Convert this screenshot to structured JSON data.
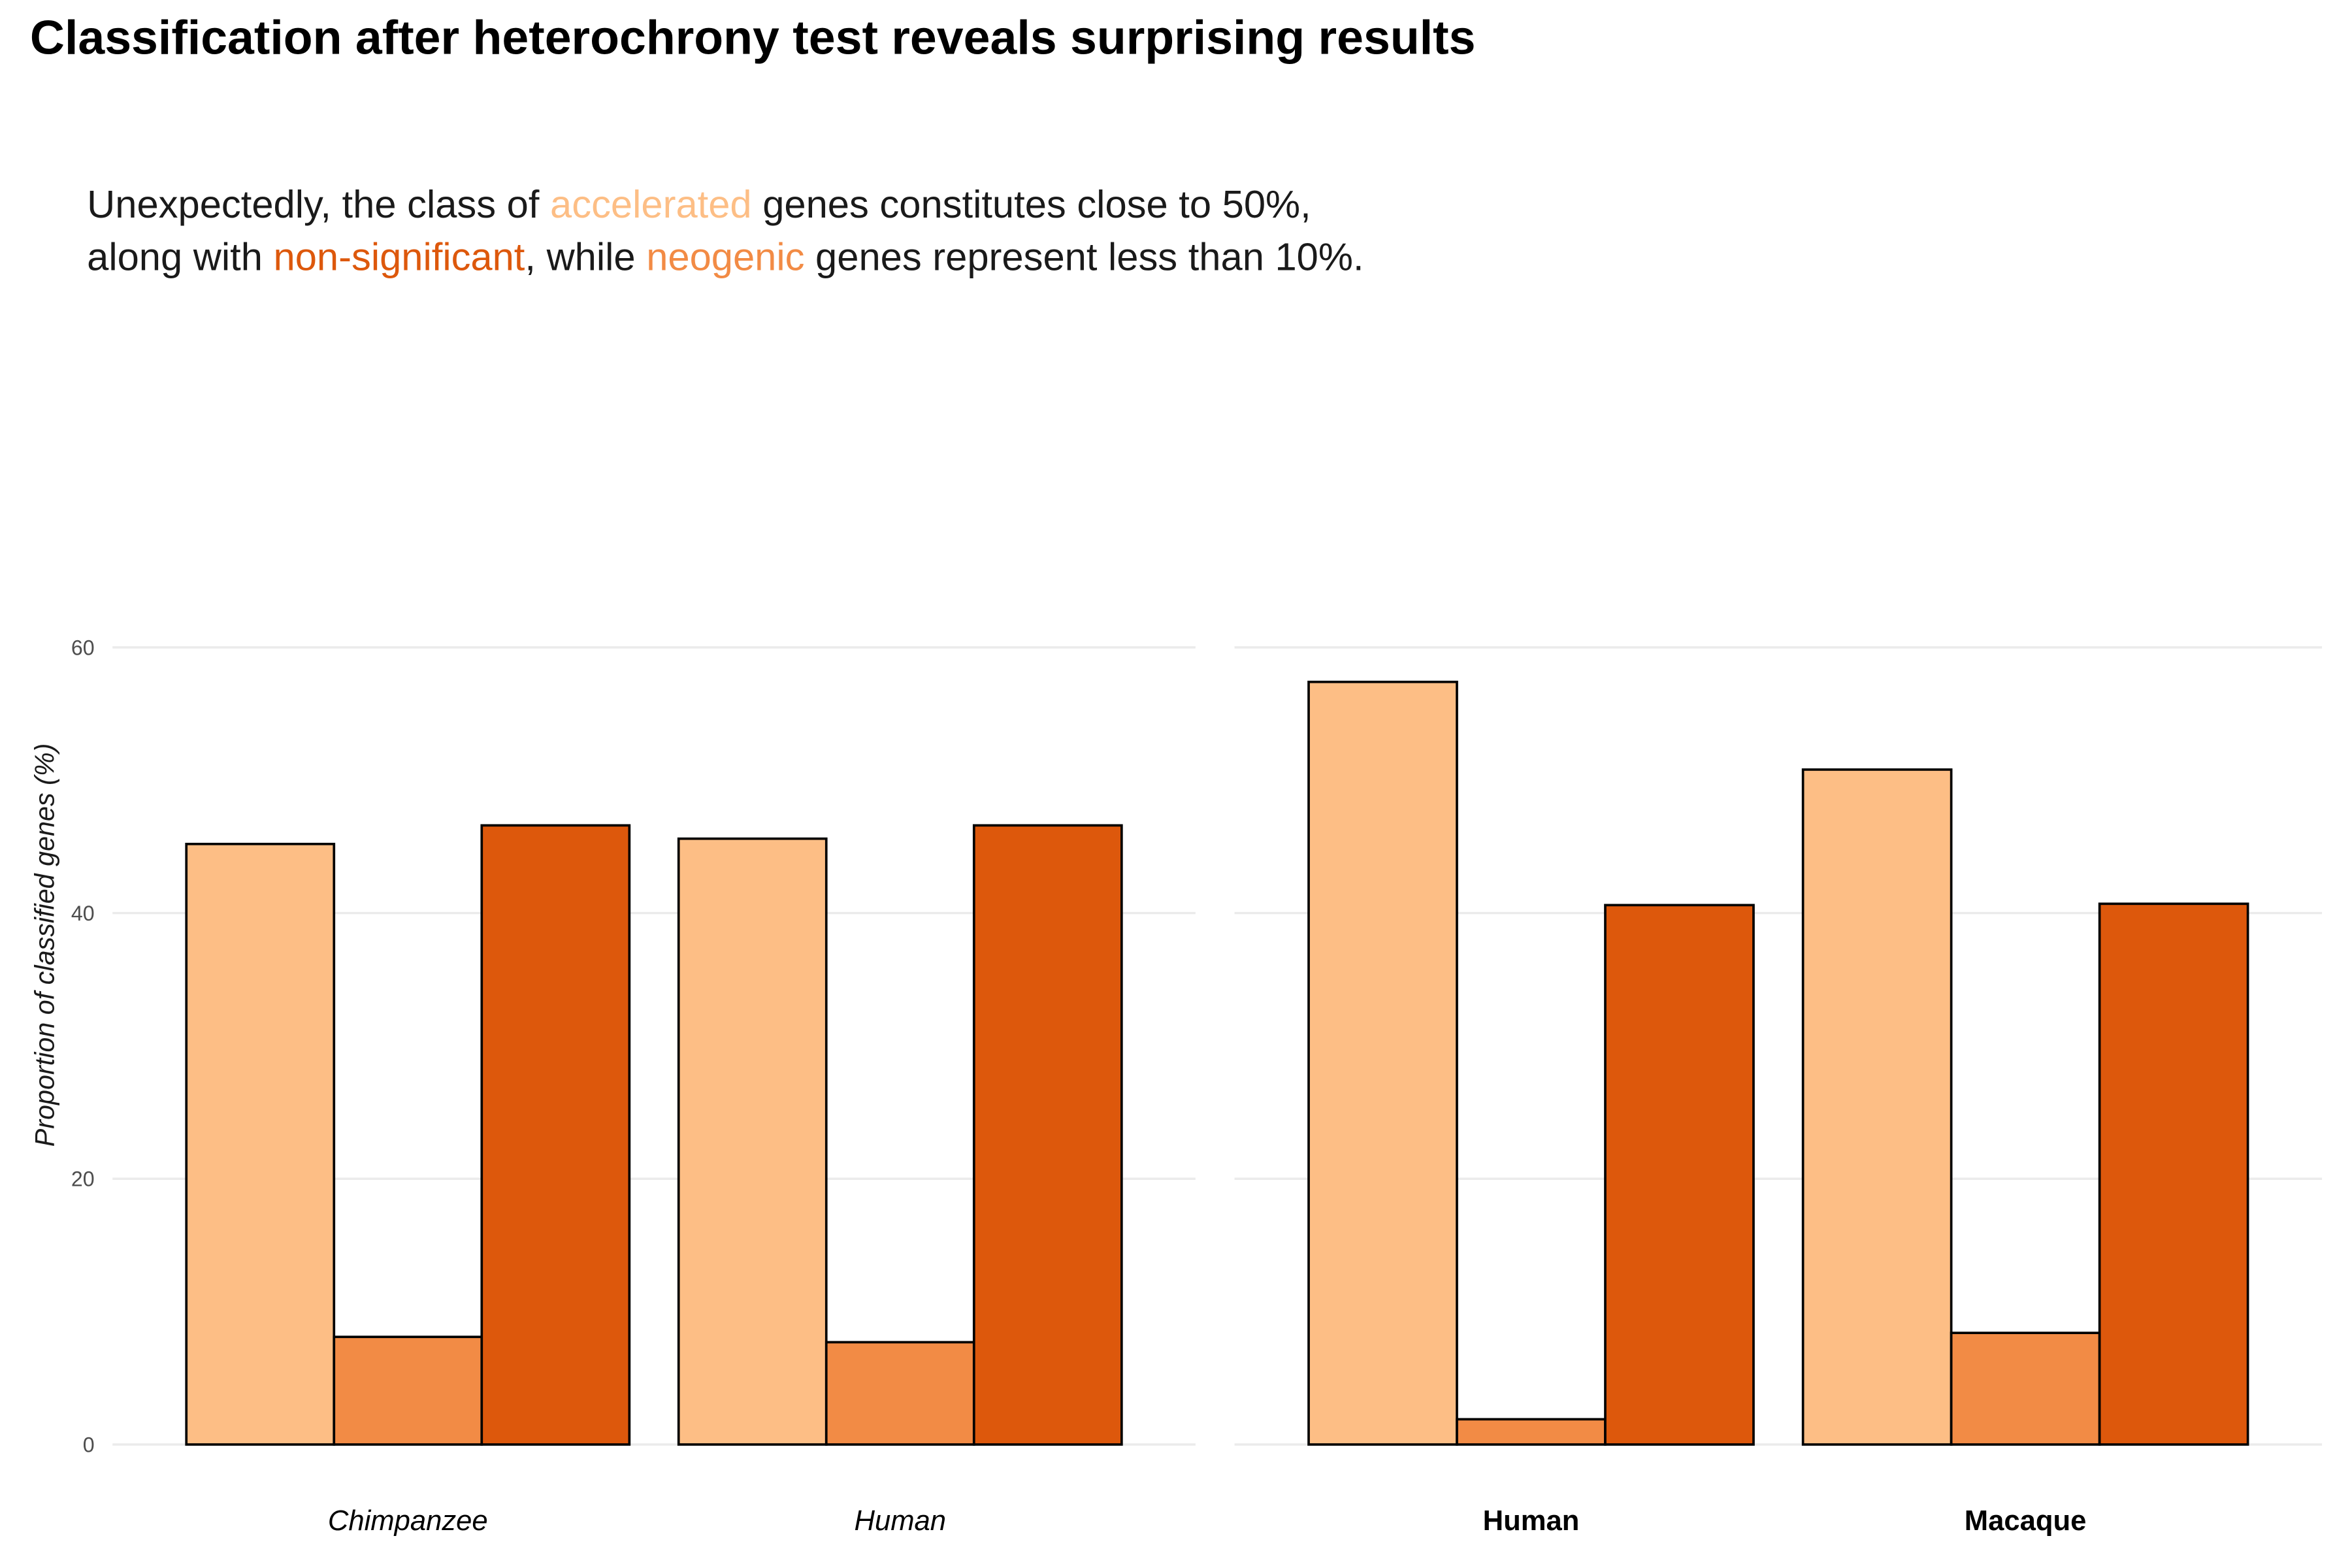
{
  "chart_data": {
    "type": "bar",
    "title": "Classification after heterochrony test reveals surprising results",
    "subtitle_parts": [
      "Unexpectedly, the class of ",
      " genes constitutes close to 50%,",
      "along with ",
      ", while ",
      " genes represent less than 10%."
    ],
    "ylabel": "Proportion of classified genes (%)",
    "ylim": [
      0,
      63
    ],
    "yticks": [
      0,
      20,
      40,
      60
    ],
    "grid": true,
    "series": [
      {
        "name": "accelerated",
        "color": "#fdbe85"
      },
      {
        "name": "neogenic",
        "color": "#f28b45"
      },
      {
        "name": "non-significant",
        "color": "#dd580c"
      }
    ],
    "panels": [
      {
        "categories": [
          "Chimpanzee",
          "Human"
        ],
        "label_style": "italic",
        "values": [
          [
            45.2,
            45.6
          ],
          [
            8.1,
            7.7
          ],
          [
            46.6,
            46.6
          ]
        ]
      },
      {
        "categories": [
          "Human",
          "Macaque"
        ],
        "label_style": "bold",
        "values": [
          [
            57.4,
            50.8
          ],
          [
            1.9,
            8.4
          ],
          [
            40.6,
            40.7
          ]
        ]
      }
    ]
  }
}
